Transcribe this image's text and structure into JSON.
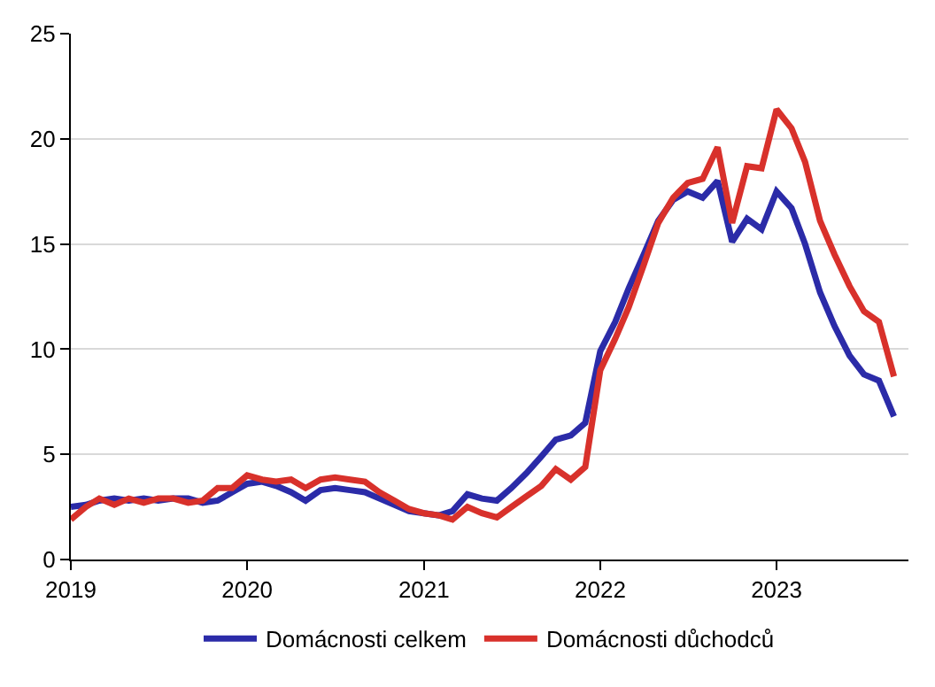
{
  "chart_data": {
    "type": "line",
    "x": [
      "2019-01",
      "2019-02",
      "2019-03",
      "2019-04",
      "2019-05",
      "2019-06",
      "2019-07",
      "2019-08",
      "2019-09",
      "2019-10",
      "2019-11",
      "2019-12",
      "2020-01",
      "2020-02",
      "2020-03",
      "2020-04",
      "2020-05",
      "2020-06",
      "2020-07",
      "2020-08",
      "2020-09",
      "2020-10",
      "2020-11",
      "2020-12",
      "2021-01",
      "2021-02",
      "2021-03",
      "2021-04",
      "2021-05",
      "2021-06",
      "2021-07",
      "2021-08",
      "2021-09",
      "2021-10",
      "2021-11",
      "2021-12",
      "2022-01",
      "2022-02",
      "2022-03",
      "2022-04",
      "2022-05",
      "2022-06",
      "2022-07",
      "2022-08",
      "2022-09",
      "2022-10",
      "2022-11",
      "2022-12",
      "2023-01",
      "2023-02",
      "2023-03",
      "2023-04",
      "2023-05",
      "2023-06",
      "2023-07",
      "2023-08",
      "2023-09"
    ],
    "series": [
      {
        "name": "Domácnosti celkem",
        "color": "#2b2ba8",
        "values": [
          2.5,
          2.6,
          2.8,
          2.9,
          2.8,
          2.9,
          2.8,
          2.9,
          2.9,
          2.7,
          2.8,
          3.2,
          3.6,
          3.7,
          3.5,
          3.2,
          2.8,
          3.3,
          3.4,
          3.3,
          3.2,
          2.9,
          2.6,
          2.3,
          2.2,
          2.1,
          2.3,
          3.1,
          2.9,
          2.8,
          3.4,
          4.1,
          4.9,
          5.7,
          5.9,
          6.5,
          9.9,
          11.3,
          12.9,
          14.5,
          16.1,
          17.1,
          17.5,
          17.2,
          18.0,
          15.1,
          16.2,
          15.7,
          17.5,
          16.7,
          15.0,
          12.7,
          11.1,
          9.7,
          8.8,
          8.5,
          6.8
        ]
      },
      {
        "name": "Domácnosti důchodců",
        "color": "#d8312b",
        "values": [
          1.9,
          2.5,
          2.9,
          2.6,
          2.9,
          2.7,
          2.9,
          2.9,
          2.7,
          2.8,
          3.4,
          3.4,
          4.0,
          3.8,
          3.7,
          3.8,
          3.4,
          3.8,
          3.9,
          3.8,
          3.7,
          3.2,
          2.8,
          2.4,
          2.2,
          2.1,
          1.9,
          2.5,
          2.2,
          2.0,
          2.5,
          3.0,
          3.5,
          4.3,
          3.8,
          4.4,
          9.0,
          10.5,
          12.0,
          14.0,
          16.0,
          17.2,
          17.9,
          18.1,
          19.6,
          16.0,
          18.7,
          18.6,
          21.4,
          20.5,
          18.9,
          16.1,
          14.5,
          13.0,
          11.8,
          11.3,
          8.7
        ]
      }
    ],
    "xlim": [
      "2019-01",
      "2023-10"
    ],
    "xticks": [
      {
        "value": "2019-01",
        "label": "2019"
      },
      {
        "value": "2020-01",
        "label": "2020"
      },
      {
        "value": "2021-01",
        "label": "2021"
      },
      {
        "value": "2022-01",
        "label": "2022"
      },
      {
        "value": "2023-01",
        "label": "2023"
      }
    ],
    "ylim": [
      0,
      25
    ],
    "yticks": [
      0,
      5,
      10,
      15,
      20,
      25
    ],
    "grid": "y",
    "legend": "bottom",
    "marker": "none",
    "line_style": "solid"
  }
}
